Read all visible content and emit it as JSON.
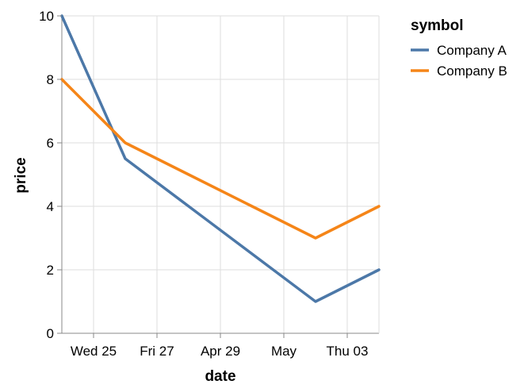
{
  "chart_data": {
    "type": "line",
    "x": [
      "2023-04-24",
      "2023-04-26",
      "2023-04-28",
      "2023-04-30",
      "2023-05-02",
      "2023-05-04"
    ],
    "series": [
      {
        "name": "Company A",
        "color": "#4c78a8",
        "values": [
          10,
          5.5,
          4,
          2.5,
          1,
          2
        ]
      },
      {
        "name": "Company B",
        "color": "#f58518",
        "values": [
          8,
          6,
          5,
          4,
          3,
          4
        ]
      }
    ],
    "xlabel": "date",
    "ylabel": "price",
    "ylim": [
      0,
      10
    ],
    "xlim": [
      "2023-04-24",
      "2023-05-04"
    ],
    "x_ticks": [
      {
        "label": "Wed 25",
        "date": "2023-04-25"
      },
      {
        "label": "Fri 27",
        "date": "2023-04-27"
      },
      {
        "label": "Apr 29",
        "date": "2023-04-29"
      },
      {
        "label": "May",
        "date": "2023-05-01"
      },
      {
        "label": "Thu 03",
        "date": "2023-05-03"
      }
    ],
    "y_ticks": [
      0,
      2,
      4,
      6,
      8,
      10
    ],
    "grid": true,
    "legend": {
      "title": "symbol",
      "placement": "right"
    }
  }
}
